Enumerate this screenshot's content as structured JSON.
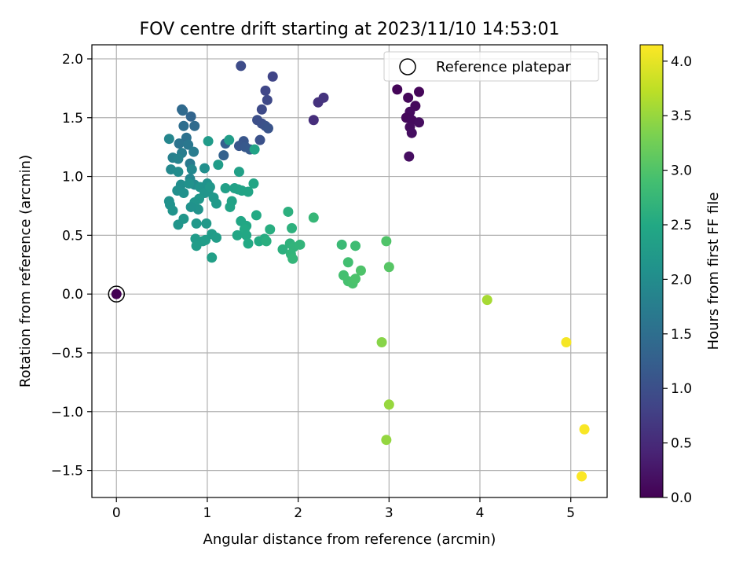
{
  "chart_data": {
    "type": "scatter",
    "title": "FOV centre drift starting at 2023/11/10 14:53:01",
    "xlabel": "Angular distance from reference (arcmin)",
    "ylabel": "Rotation from reference (arcmin)",
    "xlim": [
      -0.27,
      5.4
    ],
    "ylim": [
      -1.73,
      2.12
    ],
    "xticks": [
      {
        "v": 0,
        "label": "0"
      },
      {
        "v": 1,
        "label": "1"
      },
      {
        "v": 2,
        "label": "2"
      },
      {
        "v": 3,
        "label": "3"
      },
      {
        "v": 4,
        "label": "4"
      },
      {
        "v": 5,
        "label": "5"
      }
    ],
    "yticks": [
      {
        "v": -1.5,
        "label": "−1.5"
      },
      {
        "v": -1.0,
        "label": "−1.0"
      },
      {
        "v": -0.5,
        "label": "−0.5"
      },
      {
        "v": 0.0,
        "label": "0.0"
      },
      {
        "v": 0.5,
        "label": "0.5"
      },
      {
        "v": 1.0,
        "label": "1.0"
      },
      {
        "v": 1.5,
        "label": "1.5"
      },
      {
        "v": 2.0,
        "label": "2.0"
      }
    ],
    "grid": true,
    "legend": {
      "position": "top-right",
      "label": "Reference platepar"
    },
    "reference_point": {
      "x": 0,
      "y": 0
    },
    "colorbar": {
      "label": "Hours from first FF file",
      "min": 0,
      "max": 4.15,
      "colormap": "viridis",
      "ticks": [
        {
          "v": 0.0,
          "label": "0.0"
        },
        {
          "v": 0.5,
          "label": "0.5"
        },
        {
          "v": 1.0,
          "label": "1.0"
        },
        {
          "v": 1.5,
          "label": "1.5"
        },
        {
          "v": 2.0,
          "label": "2.0"
        },
        {
          "v": 2.5,
          "label": "2.5"
        },
        {
          "v": 3.0,
          "label": "3.0"
        },
        {
          "v": 3.5,
          "label": "3.5"
        },
        {
          "v": 4.0,
          "label": "4.0"
        }
      ]
    },
    "points": [
      [
        0.0,
        0.0,
        0.0
      ],
      [
        3.09,
        1.74,
        0.05
      ],
      [
        3.21,
        1.67,
        0.08
      ],
      [
        3.33,
        1.72,
        0.06
      ],
      [
        3.29,
        1.6,
        0.1
      ],
      [
        3.23,
        1.55,
        0.12
      ],
      [
        3.19,
        1.5,
        0.09
      ],
      [
        3.25,
        1.48,
        0.11
      ],
      [
        3.33,
        1.46,
        0.14
      ],
      [
        3.23,
        1.42,
        0.13
      ],
      [
        3.25,
        1.37,
        0.15
      ],
      [
        3.22,
        1.17,
        0.16
      ],
      [
        2.17,
        1.48,
        0.55
      ],
      [
        2.22,
        1.63,
        0.6
      ],
      [
        2.28,
        1.67,
        0.62
      ],
      [
        1.37,
        1.94,
        0.95
      ],
      [
        1.72,
        1.85,
        0.85
      ],
      [
        1.64,
        1.73,
        0.88
      ],
      [
        1.66,
        1.65,
        0.9
      ],
      [
        1.6,
        1.57,
        0.92
      ],
      [
        1.55,
        1.48,
        1.0
      ],
      [
        1.6,
        1.45,
        1.02
      ],
      [
        1.64,
        1.43,
        1.05
      ],
      [
        1.67,
        1.41,
        1.07
      ],
      [
        1.58,
        1.31,
        1.03
      ],
      [
        1.4,
        1.3,
        1.1
      ],
      [
        1.35,
        1.26,
        1.12
      ],
      [
        1.42,
        1.25,
        1.15
      ],
      [
        1.47,
        1.23,
        1.18
      ],
      [
        1.2,
        1.28,
        1.25
      ],
      [
        1.18,
        1.18,
        1.3
      ],
      [
        0.82,
        1.51,
        1.35
      ],
      [
        0.72,
        1.57,
        1.4
      ],
      [
        0.73,
        1.56,
        1.42
      ],
      [
        0.86,
        1.43,
        1.45
      ],
      [
        0.74,
        1.43,
        1.5
      ],
      [
        0.77,
        1.33,
        1.55
      ],
      [
        0.69,
        1.28,
        1.6
      ],
      [
        0.79,
        1.27,
        1.65
      ],
      [
        0.81,
        1.11,
        1.7
      ],
      [
        0.85,
        1.21,
        1.72
      ],
      [
        0.72,
        1.2,
        1.75
      ],
      [
        0.62,
        1.16,
        1.8
      ],
      [
        0.68,
        1.15,
        1.85
      ],
      [
        0.58,
        1.32,
        1.9
      ],
      [
        0.6,
        1.06,
        1.95
      ],
      [
        0.68,
        1.04,
        2.0
      ],
      [
        0.83,
        1.06,
        1.92
      ],
      [
        0.81,
        0.98,
        1.88
      ],
      [
        0.86,
        0.93,
        1.97
      ],
      [
        0.71,
        0.93,
        2.02
      ],
      [
        0.67,
        0.88,
        2.05
      ],
      [
        0.74,
        0.86,
        2.08
      ],
      [
        0.8,
        0.94,
        2.1
      ],
      [
        0.92,
        0.91,
        2.12
      ],
      [
        0.97,
        0.86,
        2.15
      ],
      [
        0.97,
        1.07,
        2.05
      ],
      [
        1.0,
        0.94,
        2.1
      ],
      [
        1.01,
        0.87,
        2.15
      ],
      [
        1.03,
        0.91,
        2.18
      ],
      [
        1.07,
        0.82,
        2.2
      ],
      [
        1.1,
        0.77,
        2.22
      ],
      [
        0.91,
        0.81,
        2.18
      ],
      [
        0.86,
        0.78,
        2.14
      ],
      [
        0.9,
        0.72,
        2.12
      ],
      [
        0.82,
        0.74,
        2.1
      ],
      [
        0.74,
        0.64,
        2.16
      ],
      [
        0.58,
        0.79,
        2.08
      ],
      [
        0.59,
        0.76,
        2.1
      ],
      [
        0.62,
        0.71,
        2.12
      ],
      [
        0.68,
        0.59,
        2.14
      ],
      [
        0.88,
        0.6,
        2.2
      ],
      [
        0.99,
        0.6,
        2.22
      ],
      [
        0.87,
        0.47,
        2.25
      ],
      [
        0.88,
        0.41,
        2.28
      ],
      [
        0.95,
        0.45,
        2.27
      ],
      [
        0.98,
        0.46,
        2.3
      ],
      [
        1.05,
        0.51,
        2.28
      ],
      [
        1.1,
        0.48,
        2.3
      ],
      [
        1.05,
        0.31,
        2.32
      ],
      [
        1.01,
        1.3,
        2.25
      ],
      [
        1.12,
        1.1,
        2.28
      ],
      [
        1.24,
        1.31,
        2.3
      ],
      [
        1.52,
        1.23,
        2.4
      ],
      [
        1.35,
        1.04,
        2.35
      ],
      [
        1.2,
        0.9,
        2.32
      ],
      [
        1.3,
        0.9,
        2.36
      ],
      [
        1.34,
        0.89,
        2.38
      ],
      [
        1.38,
        0.88,
        2.4
      ],
      [
        1.45,
        0.87,
        2.42
      ],
      [
        1.51,
        0.94,
        2.44
      ],
      [
        1.27,
        0.79,
        2.38
      ],
      [
        1.25,
        0.74,
        2.4
      ],
      [
        1.37,
        0.62,
        2.45
      ],
      [
        1.43,
        0.58,
        2.48
      ],
      [
        1.41,
        0.55,
        2.5
      ],
      [
        1.54,
        0.67,
        2.5
      ],
      [
        1.33,
        0.5,
        2.46
      ],
      [
        1.43,
        0.5,
        2.48
      ],
      [
        1.45,
        0.43,
        2.5
      ],
      [
        1.57,
        0.45,
        2.52
      ],
      [
        1.63,
        0.47,
        2.55
      ],
      [
        1.69,
        0.55,
        2.58
      ],
      [
        1.65,
        0.45,
        2.6
      ],
      [
        1.83,
        0.38,
        2.62
      ],
      [
        1.89,
        0.7,
        2.62
      ],
      [
        1.93,
        0.56,
        2.64
      ],
      [
        1.91,
        0.43,
        2.66
      ],
      [
        1.95,
        0.4,
        2.68
      ],
      [
        2.02,
        0.42,
        2.7
      ],
      [
        1.92,
        0.34,
        2.7
      ],
      [
        1.94,
        0.3,
        2.72
      ],
      [
        2.17,
        0.65,
        2.75
      ],
      [
        2.48,
        0.42,
        2.8
      ],
      [
        2.63,
        0.41,
        2.85
      ],
      [
        2.55,
        0.27,
        2.88
      ],
      [
        2.5,
        0.16,
        2.9
      ],
      [
        2.55,
        0.11,
        2.92
      ],
      [
        2.6,
        0.09,
        2.95
      ],
      [
        2.63,
        0.13,
        2.97
      ],
      [
        2.69,
        0.2,
        2.98
      ],
      [
        2.97,
        0.45,
        3.0
      ],
      [
        3.0,
        0.23,
        3.05
      ],
      [
        2.92,
        -0.41,
        3.4
      ],
      [
        3.0,
        -0.94,
        3.5
      ],
      [
        2.97,
        -1.24,
        3.48
      ],
      [
        4.08,
        -0.05,
        3.6
      ],
      [
        4.95,
        -0.41,
        4.1
      ],
      [
        5.15,
        -1.15,
        4.12
      ],
      [
        5.12,
        -1.55,
        4.14
      ]
    ]
  }
}
